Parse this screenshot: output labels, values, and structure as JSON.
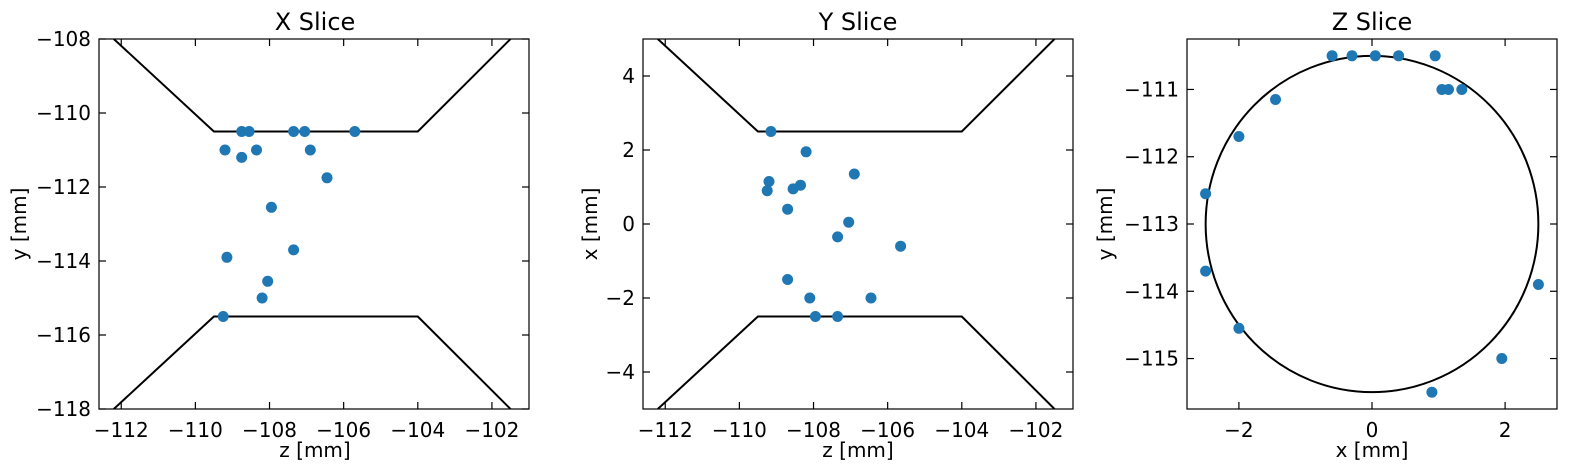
{
  "chart_data": [
    {
      "type": "scatter",
      "title": "X Slice",
      "xlabel": "z [mm]",
      "ylabel": "y [mm]",
      "xlim": [
        -112.6,
        -101.0
      ],
      "ylim": [
        -118,
        -108
      ],
      "xticks": [
        -112,
        -110,
        -108,
        -106,
        -104,
        -102
      ],
      "yticks": [
        -118,
        -116,
        -114,
        -112,
        -110,
        -108
      ],
      "grid": false,
      "marker_color": "#1f77b4",
      "line_color": "#000000",
      "points": [
        [
          -109.2,
          -111.0
        ],
        [
          -108.75,
          -110.5
        ],
        [
          -108.55,
          -110.5
        ],
        [
          -108.75,
          -111.2
        ],
        [
          -108.35,
          -111.0
        ],
        [
          -107.35,
          -110.5
        ],
        [
          -107.05,
          -110.5
        ],
        [
          -106.9,
          -111.0
        ],
        [
          -105.7,
          -110.5
        ],
        [
          -106.45,
          -111.75
        ],
        [
          -107.95,
          -112.55
        ],
        [
          -107.35,
          -113.7
        ],
        [
          -109.15,
          -113.9
        ],
        [
          -108.05,
          -114.55
        ],
        [
          -108.2,
          -115.0
        ],
        [
          -109.25,
          -115.5
        ]
      ],
      "lines": [
        [
          [
            -112.2,
            -108.0
          ],
          [
            -109.5,
            -110.5
          ],
          [
            -104.0,
            -110.5
          ],
          [
            -101.5,
            -108.0
          ]
        ],
        [
          [
            -112.2,
            -118.0
          ],
          [
            -109.5,
            -115.5
          ],
          [
            -104.0,
            -115.5
          ],
          [
            -101.5,
            -118.0
          ]
        ]
      ]
    },
    {
      "type": "scatter",
      "title": "Y Slice",
      "xlabel": "z [mm]",
      "ylabel": "x [mm]",
      "xlim": [
        -112.6,
        -101.0
      ],
      "ylim": [
        -5,
        5
      ],
      "xticks": [
        -112,
        -110,
        -108,
        -106,
        -104,
        -102
      ],
      "yticks": [
        -4,
        -2,
        0,
        2,
        4
      ],
      "grid": false,
      "marker_color": "#1f77b4",
      "line_color": "#000000",
      "points": [
        [
          -109.15,
          2.5
        ],
        [
          -108.2,
          1.95
        ],
        [
          -109.2,
          1.15
        ],
        [
          -109.25,
          0.9
        ],
        [
          -108.35,
          1.05
        ],
        [
          -108.55,
          0.95
        ],
        [
          -106.9,
          1.35
        ],
        [
          -108.7,
          0.4
        ],
        [
          -107.05,
          0.05
        ],
        [
          -107.35,
          -0.35
        ],
        [
          -105.65,
          -0.6
        ],
        [
          -108.7,
          -1.5
        ],
        [
          -108.1,
          -2.0
        ],
        [
          -106.45,
          -2.0
        ],
        [
          -107.95,
          -2.5
        ],
        [
          -107.35,
          -2.5
        ]
      ],
      "lines": [
        [
          [
            -112.2,
            5.0
          ],
          [
            -109.5,
            2.5
          ],
          [
            -104.0,
            2.5
          ],
          [
            -101.5,
            5.0
          ]
        ],
        [
          [
            -112.2,
            -5.0
          ],
          [
            -109.5,
            -2.5
          ],
          [
            -104.0,
            -2.5
          ],
          [
            -101.5,
            -5.0
          ]
        ]
      ]
    },
    {
      "type": "scatter",
      "title": "Z Slice",
      "xlabel": "x [mm]",
      "ylabel": "y [mm]",
      "xlim": [
        -2.78,
        2.78
      ],
      "ylim": [
        -115.75,
        -110.25
      ],
      "xticks": [
        -2,
        0,
        2
      ],
      "yticks": [
        -115,
        -114,
        -113,
        -112,
        -111
      ],
      "grid": false,
      "marker_color": "#1f77b4",
      "line_color": "#000000",
      "circle": {
        "cx": 0,
        "cy": -113,
        "r": 2.5
      },
      "points": [
        [
          -0.6,
          -110.5
        ],
        [
          -0.3,
          -110.5
        ],
        [
          0.05,
          -110.5
        ],
        [
          0.4,
          -110.5
        ],
        [
          0.95,
          -110.5
        ],
        [
          1.05,
          -111.0
        ],
        [
          1.15,
          -111.0
        ],
        [
          1.35,
          -111.0
        ],
        [
          -1.45,
          -111.15
        ],
        [
          -2.0,
          -111.7
        ],
        [
          -2.5,
          -112.55
        ],
        [
          -2.5,
          -113.7
        ],
        [
          2.5,
          -113.9
        ],
        [
          -2.0,
          -114.55
        ],
        [
          1.95,
          -115.0
        ],
        [
          0.9,
          -115.5
        ]
      ]
    }
  ]
}
